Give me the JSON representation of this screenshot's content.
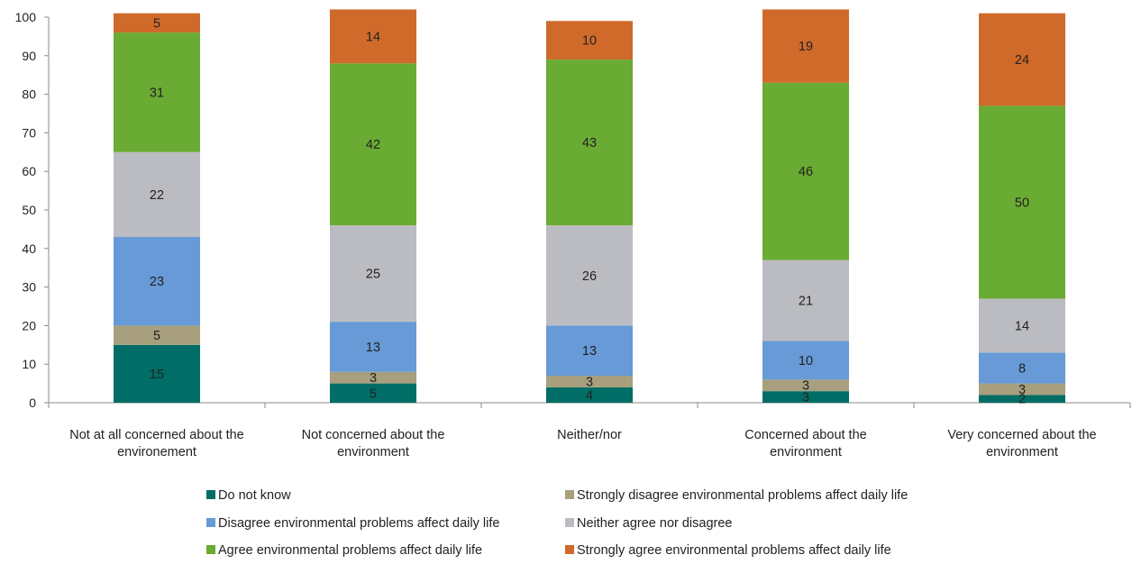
{
  "chart_data": {
    "type": "bar",
    "stacked": true,
    "title": "",
    "xlabel": "",
    "ylabel": "",
    "ylim": [
      0,
      100
    ],
    "yticks": [
      0,
      10,
      20,
      30,
      40,
      50,
      60,
      70,
      80,
      90,
      100
    ],
    "grid": false,
    "legend_position": "bottom",
    "categories": [
      [
        "Not at all concerned about the",
        "environement"
      ],
      [
        "Not concerned about the",
        "environment"
      ],
      [
        "Neither/nor"
      ],
      [
        "Concerned about the",
        "environment"
      ],
      [
        "Very concerned about the",
        "environment"
      ]
    ],
    "series": [
      {
        "name": "Do not know",
        "color": "#006d66",
        "values": [
          15,
          5,
          4,
          3,
          2
        ]
      },
      {
        "name": "Strongly disagree environmental problems affect daily life",
        "color": "#a79f7d",
        "values": [
          5,
          3,
          3,
          3,
          3
        ]
      },
      {
        "name": "Disagree environmental problems affect daily life",
        "color": "#679ad6",
        "values": [
          23,
          13,
          13,
          10,
          8
        ]
      },
      {
        "name": "Neither agree nor disagree",
        "color": "#bbbcc1",
        "values": [
          22,
          25,
          26,
          21,
          14
        ]
      },
      {
        "name": "Agree environmental problems affect daily life",
        "color": "#6aab33",
        "values": [
          31,
          42,
          43,
          46,
          50
        ]
      },
      {
        "name": "Strongly agree environmental problems affect daily life",
        "color": "#d06a2a",
        "values": [
          5,
          14,
          10,
          19,
          24
        ]
      }
    ]
  }
}
